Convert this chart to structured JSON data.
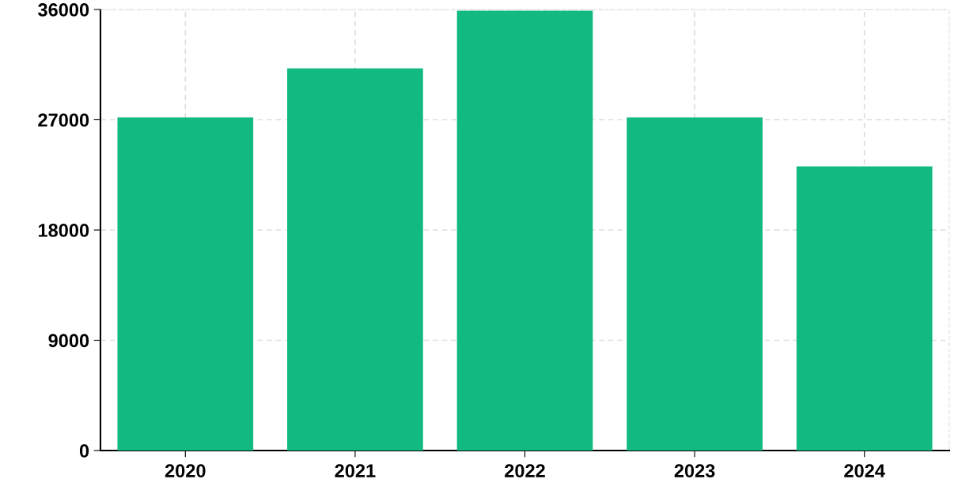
{
  "chart_data": {
    "type": "bar",
    "categories": [
      "2020",
      "2021",
      "2022",
      "2023",
      "2024"
    ],
    "values": [
      27200,
      31200,
      35900,
      27200,
      23200
    ],
    "color": "#12b981",
    "ylim": [
      0,
      36000
    ],
    "yticks": [
      0,
      9000,
      18000,
      27000,
      36000
    ],
    "grid": true
  }
}
